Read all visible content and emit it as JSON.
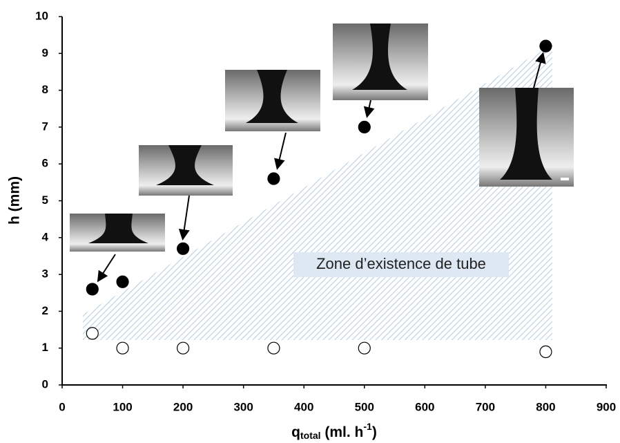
{
  "chart_data": {
    "type": "scatter",
    "x_label": {
      "main": "q",
      "sub": "total",
      "unit": " (ml. h",
      "sup": "-1",
      "close": ")"
    },
    "y_label": "h (mm)",
    "annotation": "Zone d’existence de tube",
    "xlim": [
      0,
      900
    ],
    "ylim": [
      0,
      10
    ],
    "xticks": [
      0,
      100,
      200,
      300,
      400,
      500,
      600,
      700,
      800,
      900
    ],
    "yticks": [
      0,
      1,
      2,
      3,
      4,
      5,
      6,
      7,
      8,
      9,
      10
    ],
    "grid": false,
    "series": [
      {
        "color": "#000000",
        "filled": true,
        "x": [
          50,
          100,
          200,
          350,
          500,
          800
        ],
        "values": [
          2.6,
          2.8,
          3.7,
          5.6,
          7.0,
          9.2
        ]
      },
      {
        "color": "#000000",
        "filled": false,
        "x": [
          50,
          100,
          200,
          350,
          500,
          800
        ],
        "values": [
          1.4,
          1.0,
          1.0,
          1.0,
          1.0,
          0.9
        ]
      }
    ]
  }
}
